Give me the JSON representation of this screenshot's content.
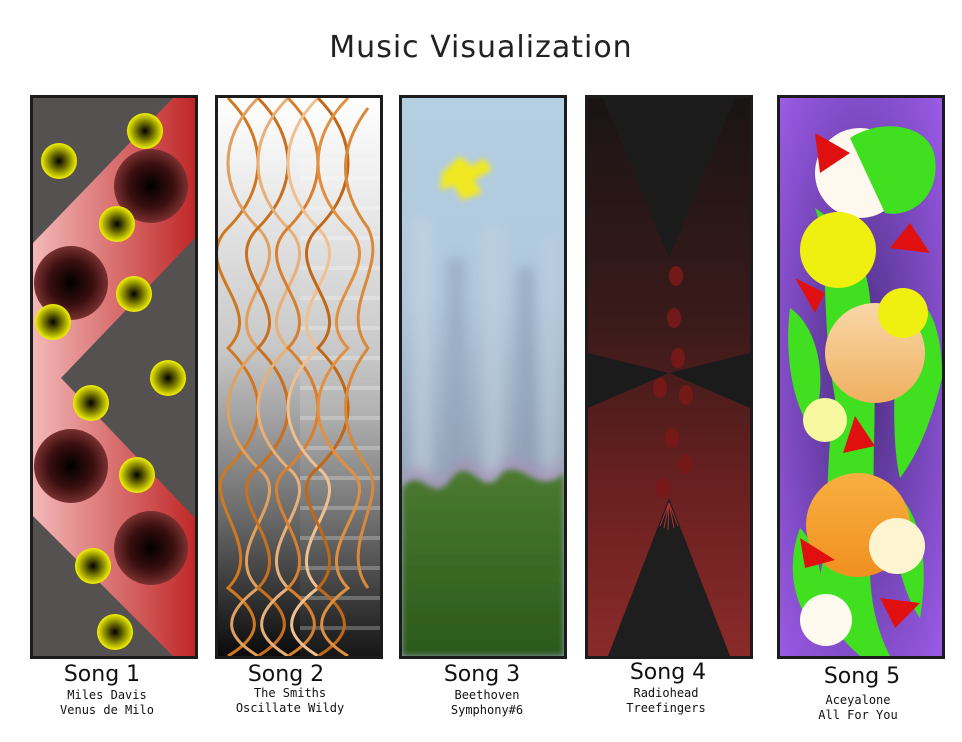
{
  "title": "Music Visualization",
  "songs": [
    {
      "label": "Song 1",
      "artist": "Miles Davis",
      "track": "Venus de Milo"
    },
    {
      "label": "Song 2",
      "artist": "The Smiths",
      "track": "Oscillate Wildy"
    },
    {
      "label": "Song 3",
      "artist": "Beethoven",
      "track": "Symphony#6"
    },
    {
      "label": "Song 4",
      "artist": "Radiohead",
      "track": "Treefingers"
    },
    {
      "label": "Song 5",
      "artist": "Aceyalone",
      "track": "All For You"
    }
  ]
}
